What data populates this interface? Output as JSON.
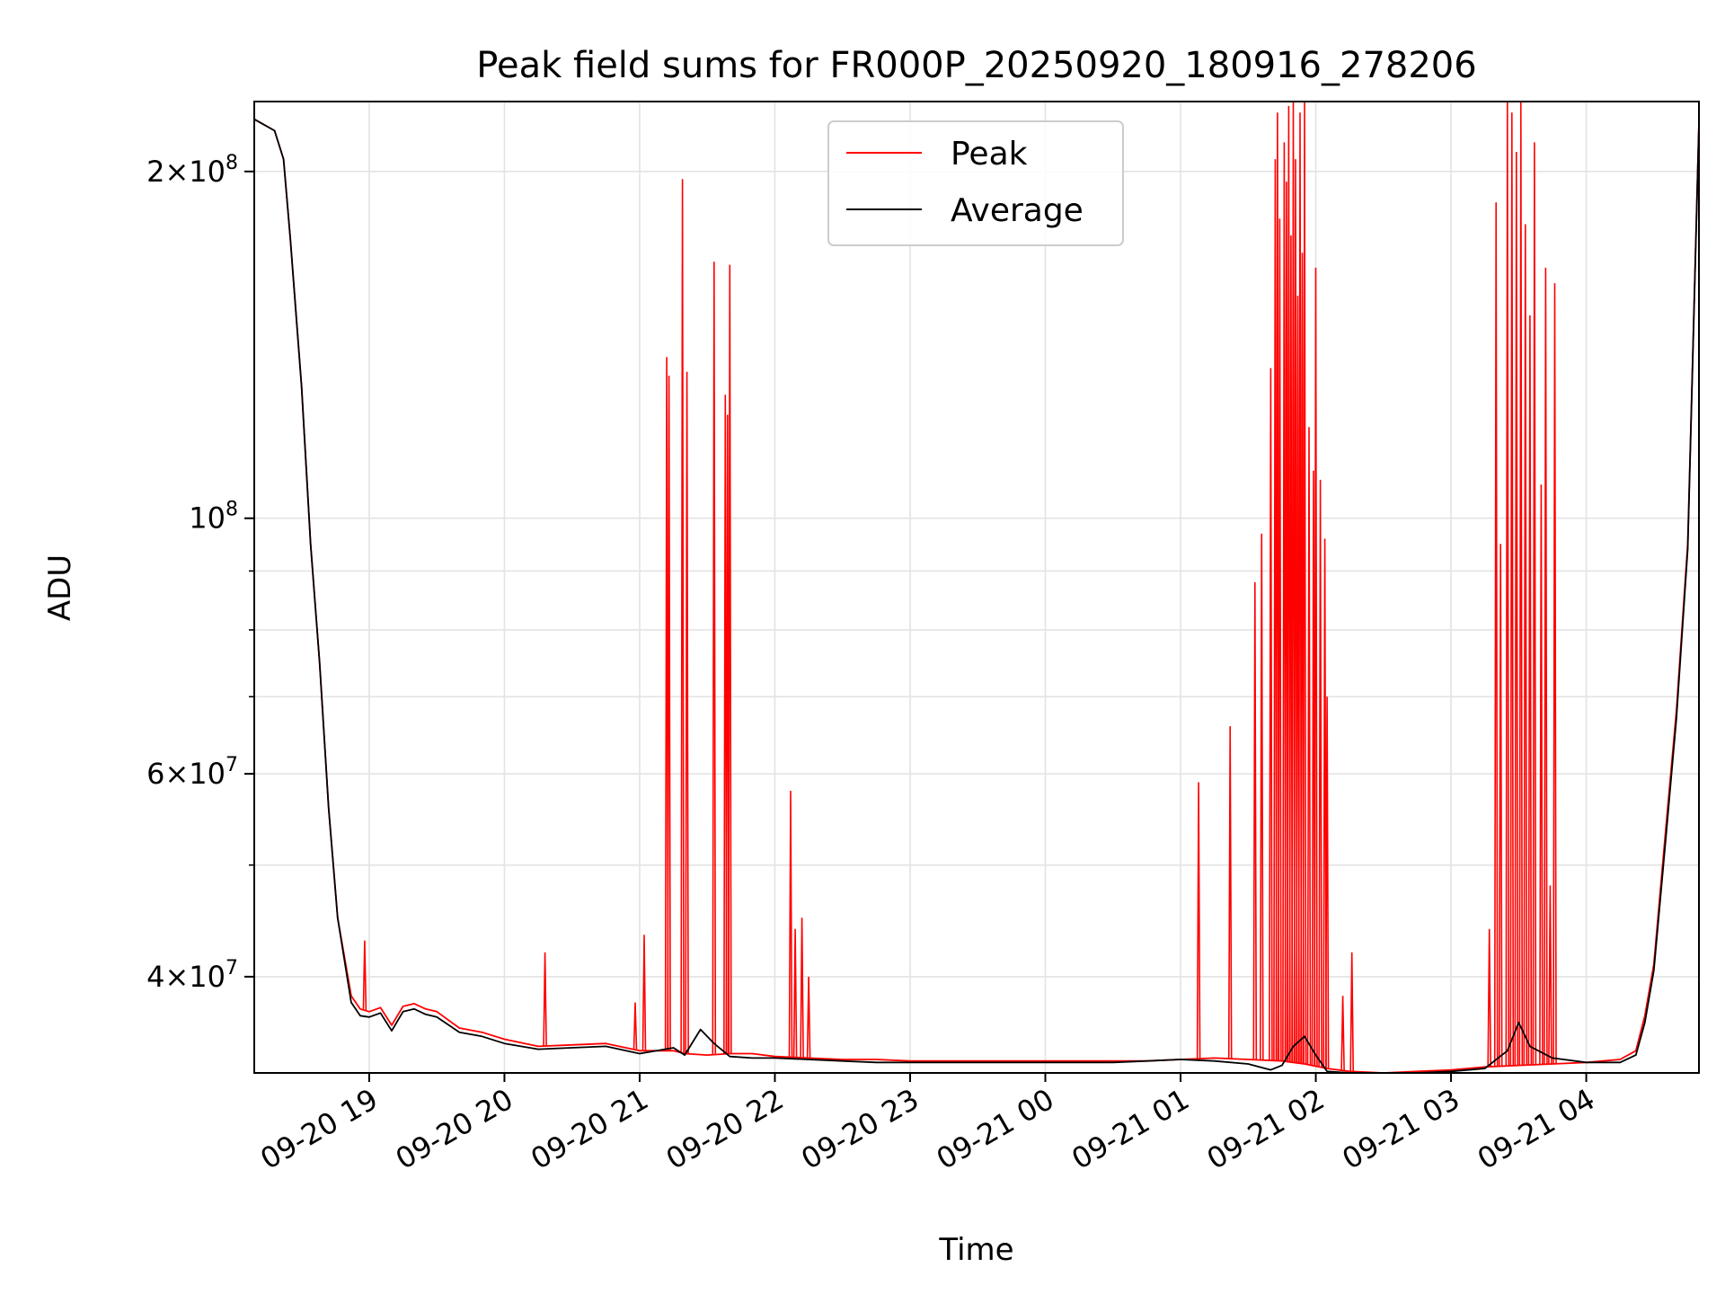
{
  "chart_data": {
    "type": "line",
    "title": "Peak field sums for FR000P_20250920_180916_278206",
    "xlabel": "Time",
    "ylabel": "ADU",
    "xlim": [
      "2025-09-20 18:09",
      "2025-09-21 04:50"
    ],
    "ylim": [
      33000000,
      230000000
    ],
    "yscale": "log",
    "grid": true,
    "legend": {
      "placement": "upper center",
      "entries": [
        "Peak",
        "Average"
      ]
    },
    "x_ticks": [
      "09-20 19",
      "09-20 20",
      "09-20 21",
      "09-20 22",
      "09-20 23",
      "09-21 00",
      "09-21 01",
      "09-21 02",
      "09-21 03",
      "09-21 04"
    ],
    "y_ticks": [
      {
        "value": 40000000,
        "base": "4",
        "exp": "7"
      },
      {
        "value": 60000000,
        "base": "6",
        "exp": "7"
      },
      {
        "value": 100000000,
        "base": "",
        "exp": "8"
      },
      {
        "value": 200000000,
        "base": "2",
        "exp": "8"
      }
    ],
    "series": [
      {
        "name": "Peak",
        "color": "#ff0000",
        "x": [
          "2025-09-20 18:09",
          "2025-09-20 18:18",
          "2025-09-20 18:22",
          "2025-09-20 18:25",
          "2025-09-20 18:30",
          "2025-09-20 18:34",
          "2025-09-20 18:38",
          "2025-09-20 18:42",
          "2025-09-20 18:46",
          "2025-09-20 18:52",
          "2025-09-20 18:56",
          "2025-09-20 19:00",
          "2025-09-20 19:05",
          "2025-09-20 19:10",
          "2025-09-20 19:15",
          "2025-09-20 19:20",
          "2025-09-20 19:25",
          "2025-09-20 19:30",
          "2025-09-20 19:40",
          "2025-09-20 19:50",
          "2025-09-20 20:00",
          "2025-09-20 20:15",
          "2025-09-20 20:30",
          "2025-09-20 20:45",
          "2025-09-20 21:00",
          "2025-09-20 21:15",
          "2025-09-20 21:20",
          "2025-09-20 21:30",
          "2025-09-20 21:40",
          "2025-09-20 21:50",
          "2025-09-20 22:00",
          "2025-09-20 22:15",
          "2025-09-20 22:30",
          "2025-09-20 22:45",
          "2025-09-20 23:00",
          "2025-09-20 23:15",
          "2025-09-20 23:30",
          "2025-09-20 23:45",
          "2025-09-21 00:00",
          "2025-09-21 00:15",
          "2025-09-21 00:30",
          "2025-09-21 00:45",
          "2025-09-21 01:00",
          "2025-09-21 01:15",
          "2025-09-21 01:30",
          "2025-09-21 01:45",
          "2025-09-21 01:55",
          "2025-09-21 02:05",
          "2025-09-21 02:15",
          "2025-09-21 02:30",
          "2025-09-21 02:45",
          "2025-09-21 03:00",
          "2025-09-21 03:15",
          "2025-09-21 03:30",
          "2025-09-21 03:45",
          "2025-09-21 04:00",
          "2025-09-21 04:15",
          "2025-09-21 04:22",
          "2025-09-21 04:26",
          "2025-09-21 04:30",
          "2025-09-21 04:35",
          "2025-09-21 04:40",
          "2025-09-21 04:45",
          "2025-09-21 04:50"
        ],
        "y": [
          222000000,
          217000000,
          205000000,
          175000000,
          130000000,
          95000000,
          75000000,
          56000000,
          45000000,
          38500000,
          37500000,
          37300000,
          37600000,
          36300000,
          37700000,
          37900000,
          37500000,
          37300000,
          36100000,
          35800000,
          35300000,
          34800000,
          34900000,
          35000000,
          34500000,
          34500000,
          34300000,
          34200000,
          34300000,
          34300000,
          34100000,
          34000000,
          33900000,
          33900000,
          33800000,
          33800000,
          33800000,
          33800000,
          33800000,
          33800000,
          33800000,
          33800000,
          33900000,
          34000000,
          33900000,
          33800000,
          33600000,
          33300000,
          33100000,
          33000000,
          33100000,
          33200000,
          33400000,
          33500000,
          33600000,
          33700000,
          33900000,
          34500000,
          37000000,
          41000000,
          53000000,
          68000000,
          95000000,
          220000000
        ],
        "spikes": [
          {
            "x": "2025-09-20 18:58",
            "y": 43000000
          },
          {
            "x": "2025-09-20 20:18",
            "y": 42000000
          },
          {
            "x": "2025-09-20 20:58",
            "y": 38000000
          },
          {
            "x": "2025-09-20 21:02",
            "y": 43500000
          },
          {
            "x": "2025-09-20 21:12",
            "y": 138000000
          },
          {
            "x": "2025-09-20 21:13",
            "y": 133000000
          },
          {
            "x": "2025-09-20 21:19",
            "y": 197000000
          },
          {
            "x": "2025-09-20 21:21",
            "y": 134000000
          },
          {
            "x": "2025-09-20 21:33",
            "y": 167000000
          },
          {
            "x": "2025-09-20 21:38",
            "y": 128000000
          },
          {
            "x": "2025-09-20 21:39",
            "y": 123000000
          },
          {
            "x": "2025-09-20 21:40",
            "y": 166000000
          },
          {
            "x": "2025-09-20 22:07",
            "y": 58000000
          },
          {
            "x": "2025-09-20 22:09",
            "y": 44000000
          },
          {
            "x": "2025-09-20 22:12",
            "y": 45000000
          },
          {
            "x": "2025-09-20 22:15",
            "y": 40000000
          },
          {
            "x": "2025-09-21 01:08",
            "y": 59000000
          },
          {
            "x": "2025-09-21 01:22",
            "y": 66000000
          },
          {
            "x": "2025-09-21 01:33",
            "y": 88000000
          },
          {
            "x": "2025-09-21 01:36",
            "y": 97000000
          },
          {
            "x": "2025-09-21 01:40",
            "y": 135000000
          },
          {
            "x": "2025-09-21 01:42",
            "y": 205000000
          },
          {
            "x": "2025-09-21 01:43",
            "y": 225000000
          },
          {
            "x": "2025-09-21 01:44",
            "y": 182000000
          },
          {
            "x": "2025-09-21 01:46",
            "y": 212000000
          },
          {
            "x": "2025-09-21 01:47",
            "y": 196000000
          },
          {
            "x": "2025-09-21 01:48",
            "y": 228000000
          },
          {
            "x": "2025-09-21 01:49",
            "y": 176000000
          },
          {
            "x": "2025-09-21 01:50",
            "y": 230000000
          },
          {
            "x": "2025-09-21 01:51",
            "y": 205000000
          },
          {
            "x": "2025-09-21 01:52",
            "y": 156000000
          },
          {
            "x": "2025-09-21 01:53",
            "y": 225000000
          },
          {
            "x": "2025-09-21 01:54",
            "y": 170000000
          },
          {
            "x": "2025-09-21 01:55",
            "y": 230000000
          },
          {
            "x": "2025-09-21 01:57",
            "y": 120000000
          },
          {
            "x": "2025-09-21 01:59",
            "y": 110000000
          },
          {
            "x": "2025-09-21 02:00",
            "y": 165000000
          },
          {
            "x": "2025-09-21 02:02",
            "y": 108000000
          },
          {
            "x": "2025-09-21 02:04",
            "y": 96000000
          },
          {
            "x": "2025-09-21 02:05",
            "y": 70000000
          },
          {
            "x": "2025-09-21 02:12",
            "y": 38500000
          },
          {
            "x": "2025-09-21 02:16",
            "y": 42000000
          },
          {
            "x": "2025-09-21 03:17",
            "y": 44000000
          },
          {
            "x": "2025-09-21 03:20",
            "y": 188000000
          },
          {
            "x": "2025-09-21 03:22",
            "y": 95000000
          },
          {
            "x": "2025-09-21 03:25",
            "y": 230000000
          },
          {
            "x": "2025-09-21 03:27",
            "y": 225000000
          },
          {
            "x": "2025-09-21 03:29",
            "y": 208000000
          },
          {
            "x": "2025-09-21 03:31",
            "y": 230000000
          },
          {
            "x": "2025-09-21 03:33",
            "y": 180000000
          },
          {
            "x": "2025-09-21 03:35",
            "y": 150000000
          },
          {
            "x": "2025-09-21 03:37",
            "y": 212000000
          },
          {
            "x": "2025-09-21 03:40",
            "y": 107000000
          },
          {
            "x": "2025-09-21 03:42",
            "y": 165000000
          },
          {
            "x": "2025-09-21 03:44",
            "y": 48000000
          },
          {
            "x": "2025-09-21 03:46",
            "y": 160000000
          }
        ]
      },
      {
        "name": "Average",
        "color": "#000000",
        "x": [
          "2025-09-20 18:09",
          "2025-09-20 18:18",
          "2025-09-20 18:22",
          "2025-09-20 18:25",
          "2025-09-20 18:30",
          "2025-09-20 18:34",
          "2025-09-20 18:38",
          "2025-09-20 18:42",
          "2025-09-20 18:46",
          "2025-09-20 18:52",
          "2025-09-20 18:56",
          "2025-09-20 19:00",
          "2025-09-20 19:05",
          "2025-09-20 19:10",
          "2025-09-20 19:15",
          "2025-09-20 19:20",
          "2025-09-20 19:25",
          "2025-09-20 19:30",
          "2025-09-20 19:40",
          "2025-09-20 19:50",
          "2025-09-20 20:00",
          "2025-09-20 20:15",
          "2025-09-20 20:30",
          "2025-09-20 20:45",
          "2025-09-20 21:00",
          "2025-09-20 21:15",
          "2025-09-20 21:20",
          "2025-09-20 21:27",
          "2025-09-20 21:33",
          "2025-09-20 21:40",
          "2025-09-20 21:50",
          "2025-09-20 22:00",
          "2025-09-20 22:15",
          "2025-09-20 22:30",
          "2025-09-20 22:45",
          "2025-09-20 23:00",
          "2025-09-20 23:15",
          "2025-09-20 23:30",
          "2025-09-20 23:45",
          "2025-09-21 00:00",
          "2025-09-21 00:15",
          "2025-09-21 00:30",
          "2025-09-21 00:45",
          "2025-09-21 01:00",
          "2025-09-21 01:15",
          "2025-09-21 01:30",
          "2025-09-21 01:40",
          "2025-09-21 01:45",
          "2025-09-21 01:50",
          "2025-09-21 01:55",
          "2025-09-21 02:00",
          "2025-09-21 02:05",
          "2025-09-21 02:15",
          "2025-09-21 02:30",
          "2025-09-21 02:45",
          "2025-09-21 03:00",
          "2025-09-21 03:15",
          "2025-09-21 03:25",
          "2025-09-21 03:30",
          "2025-09-21 03:35",
          "2025-09-21 03:45",
          "2025-09-21 04:00",
          "2025-09-21 04:15",
          "2025-09-21 04:22",
          "2025-09-21 04:26",
          "2025-09-21 04:30",
          "2025-09-21 04:35",
          "2025-09-21 04:40",
          "2025-09-21 04:45",
          "2025-09-21 04:50"
        ],
        "y": [
          222000000,
          217000000,
          205000000,
          175000000,
          130000000,
          95000000,
          75000000,
          56000000,
          45000000,
          38000000,
          37000000,
          36900000,
          37200000,
          35900000,
          37300000,
          37500000,
          37100000,
          36900000,
          35800000,
          35500000,
          35000000,
          34600000,
          34700000,
          34800000,
          34300000,
          34700000,
          34200000,
          36000000,
          35000000,
          34100000,
          34000000,
          34000000,
          33900000,
          33800000,
          33700000,
          33700000,
          33700000,
          33700000,
          33700000,
          33700000,
          33700000,
          33700000,
          33800000,
          33900000,
          33800000,
          33600000,
          33200000,
          33500000,
          34800000,
          35500000,
          34200000,
          33100000,
          33000000,
          32900000,
          33000000,
          33100000,
          33300000,
          34500000,
          36500000,
          34800000,
          34000000,
          33700000,
          33700000,
          34200000,
          36500000,
          40500000,
          52000000,
          67000000,
          94000000,
          220000000
        ]
      }
    ]
  }
}
